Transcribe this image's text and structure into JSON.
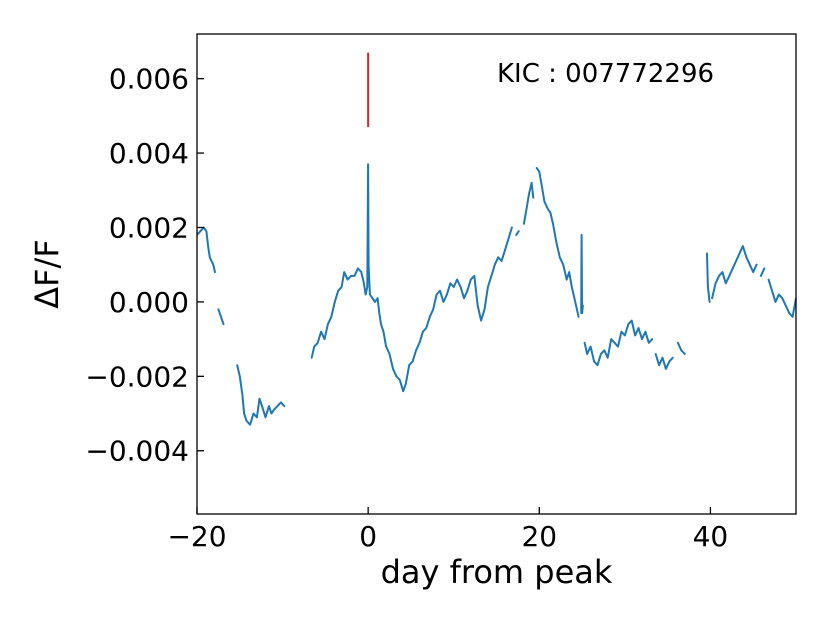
{
  "chart_data": {
    "type": "line",
    "title": "",
    "xlabel": "day from peak",
    "ylabel": "ΔF/F",
    "xlim": [
      -20,
      50
    ],
    "ylim": [
      -0.0057,
      0.0072
    ],
    "x_ticks": [
      -20,
      0,
      20,
      40
    ],
    "x_tick_labels": [
      "−20",
      "0",
      "20",
      "40"
    ],
    "y_ticks": [
      -0.004,
      -0.002,
      0.0,
      0.002,
      0.004,
      0.006
    ],
    "y_tick_labels": [
      "−0.004",
      "−0.002",
      "0.000",
      "0.002",
      "0.004",
      "0.006"
    ],
    "grid": false,
    "annotation": "KIC : 007772296",
    "colors": {
      "series": "#1f77b4",
      "marker": "#d62728",
      "axes": "#000000"
    },
    "peak_marker": {
      "x": 0,
      "y_range": [
        0.0047,
        0.0067
      ]
    },
    "series": [
      {
        "segments": [
          [
            [
              -20,
              0.0018
            ],
            [
              -19.6,
              0.0019
            ],
            [
              -19.2,
              0.002
            ],
            [
              -18.9,
              0.0019
            ],
            [
              -18.7,
              0.0015
            ],
            [
              -18.5,
              0.0012
            ],
            [
              -18.3,
              0.0011
            ],
            [
              -18.1,
              0.001
            ],
            [
              -17.9,
              0.0008
            ]
          ],
          [
            [
              -17.5,
              -0.0002
            ],
            [
              -17.2,
              -0.0004
            ],
            [
              -16.9,
              -0.0006
            ]
          ],
          [
            [
              -15.3,
              -0.0017
            ],
            [
              -15.0,
              -0.002
            ],
            [
              -14.7,
              -0.0025
            ],
            [
              -14.5,
              -0.003
            ],
            [
              -14.2,
              -0.0032
            ],
            [
              -13.8,
              -0.0033
            ],
            [
              -13.4,
              -0.003
            ],
            [
              -13.0,
              -0.0031
            ],
            [
              -12.7,
              -0.0026
            ],
            [
              -12.4,
              -0.0028
            ],
            [
              -12.0,
              -0.0031
            ],
            [
              -11.6,
              -0.0028
            ],
            [
              -11.3,
              -0.003
            ],
            [
              -11.0,
              -0.0029
            ],
            [
              -10.6,
              -0.0028
            ],
            [
              -10.2,
              -0.0027
            ],
            [
              -9.8,
              -0.0028
            ]
          ],
          [
            [
              -6.6,
              -0.0015
            ],
            [
              -6.3,
              -0.0012
            ],
            [
              -5.9,
              -0.0011
            ],
            [
              -5.5,
              -0.0008
            ],
            [
              -5.1,
              -0.001
            ],
            [
              -4.7,
              -0.0006
            ],
            [
              -4.3,
              -0.0004
            ],
            [
              -3.9,
              0.0
            ],
            [
              -3.5,
              0.0003
            ],
            [
              -3.1,
              0.0004
            ],
            [
              -2.8,
              0.0008
            ],
            [
              -2.4,
              0.0006
            ],
            [
              -2.0,
              0.0007
            ],
            [
              -1.6,
              0.0007
            ],
            [
              -1.2,
              0.0009
            ],
            [
              -0.8,
              0.0008
            ],
            [
              -0.5,
              0.0005
            ],
            [
              -0.3,
              0.0002
            ],
            [
              -0.1,
              0.0004
            ],
            [
              0.0,
              0.0037
            ],
            [
              0.05,
              0.001
            ],
            [
              0.2,
              0.0002
            ],
            [
              0.5,
              0.0001
            ],
            [
              0.8,
              0.0
            ],
            [
              1.1,
              0.0001
            ],
            [
              1.3,
              -0.0003
            ],
            [
              1.5,
              -0.0006
            ],
            [
              1.8,
              -0.0008
            ],
            [
              2.1,
              -0.0012
            ],
            [
              2.5,
              -0.0014
            ],
            [
              2.9,
              -0.0018
            ],
            [
              3.3,
              -0.002
            ],
            [
              3.7,
              -0.0021
            ],
            [
              4.1,
              -0.0024
            ],
            [
              4.4,
              -0.0022
            ],
            [
              4.8,
              -0.0017
            ],
            [
              5.2,
              -0.0016
            ],
            [
              5.6,
              -0.0013
            ],
            [
              6.0,
              -0.0011
            ],
            [
              6.4,
              -0.0008
            ],
            [
              6.8,
              -0.0007
            ],
            [
              7.2,
              -0.0004
            ],
            [
              7.6,
              -0.0002
            ],
            [
              8.0,
              0.0002
            ],
            [
              8.4,
              0.0003
            ],
            [
              8.8,
              0.0
            ],
            [
              9.2,
              0.0002
            ],
            [
              9.6,
              0.0005
            ],
            [
              10.0,
              0.0004
            ],
            [
              10.4,
              0.0006
            ],
            [
              10.8,
              0.0004
            ],
            [
              11.2,
              0.0001
            ],
            [
              11.6,
              0.0003
            ],
            [
              12.0,
              0.0006
            ],
            [
              12.4,
              0.0007
            ],
            [
              12.8,
              -0.0001
            ],
            [
              13.2,
              -0.0005
            ],
            [
              13.6,
              -0.0002
            ],
            [
              14.0,
              0.0004
            ],
            [
              14.4,
              0.0007
            ],
            [
              14.8,
              0.001
            ],
            [
              15.2,
              0.0012
            ],
            [
              15.6,
              0.0011
            ],
            [
              16.0,
              0.0014
            ],
            [
              16.4,
              0.0017
            ],
            [
              16.8,
              0.002
            ]
          ],
          [
            [
              17.3,
              0.0018
            ],
            [
              17.6,
              0.0019
            ]
          ],
          [
            [
              18.2,
              0.0021
            ],
            [
              18.5,
              0.0025
            ],
            [
              18.8,
              0.0029
            ],
            [
              19.1,
              0.0032
            ],
            [
              19.3,
              0.0028
            ]
          ],
          [
            [
              19.7,
              0.0036
            ],
            [
              20.0,
              0.0035
            ],
            [
              20.3,
              0.0031
            ],
            [
              20.6,
              0.0027
            ],
            [
              21.0,
              0.0025
            ],
            [
              21.3,
              0.0024
            ],
            [
              21.6,
              0.0021
            ],
            [
              22.0,
              0.0016
            ],
            [
              22.4,
              0.0012
            ],
            [
              22.8,
              0.001
            ],
            [
              23.2,
              0.0006
            ],
            [
              23.5,
              0.0008
            ],
            [
              23.8,
              0.0004
            ],
            [
              24.1,
              0.0001
            ],
            [
              24.4,
              -0.0002
            ],
            [
              24.6,
              -0.0004
            ]
          ],
          [
            [
              24.9,
              -0.0003
            ],
            [
              24.95,
              0.0018
            ],
            [
              25.0,
              -0.0003
            ],
            [
              25.1,
              -0.0001
            ]
          ],
          [
            [
              25.3,
              -0.0011
            ],
            [
              25.6,
              -0.0014
            ],
            [
              26.0,
              -0.0012
            ],
            [
              26.4,
              -0.0016
            ],
            [
              26.8,
              -0.0017
            ],
            [
              27.2,
              -0.0014
            ],
            [
              27.6,
              -0.0013
            ],
            [
              28.0,
              -0.0015
            ],
            [
              28.4,
              -0.001
            ],
            [
              28.8,
              -0.0011
            ],
            [
              29.2,
              -0.0012
            ],
            [
              29.6,
              -0.0008
            ],
            [
              30.0,
              -0.0009
            ],
            [
              30.4,
              -0.0006
            ],
            [
              30.8,
              -0.0005
            ],
            [
              31.2,
              -0.0009
            ],
            [
              31.6,
              -0.0007
            ],
            [
              32.0,
              -0.001
            ],
            [
              32.4,
              -0.0008
            ],
            [
              32.8,
              -0.0011
            ],
            [
              33.2,
              -0.001
            ]
          ],
          [
            [
              33.6,
              -0.0014
            ],
            [
              34.0,
              -0.0017
            ],
            [
              34.4,
              -0.0015
            ],
            [
              34.8,
              -0.0018
            ],
            [
              35.2,
              -0.0016
            ],
            [
              35.6,
              -0.0015
            ]
          ],
          [
            [
              36.2,
              -0.0011
            ],
            [
              36.6,
              -0.0013
            ],
            [
              37.0,
              -0.0014
            ]
          ],
          [
            [
              39.6,
              0.0013
            ],
            [
              39.7,
              0.0004
            ],
            [
              39.9,
              0.0
            ]
          ],
          [
            [
              40.2,
              0.0001
            ],
            [
              40.6,
              0.0005
            ],
            [
              41.0,
              0.0007
            ],
            [
              41.4,
              0.0008
            ],
            [
              41.8,
              0.0005
            ],
            [
              42.2,
              0.0007
            ],
            [
              42.6,
              0.0009
            ],
            [
              43.0,
              0.0011
            ],
            [
              43.4,
              0.0013
            ],
            [
              43.8,
              0.0015
            ],
            [
              44.2,
              0.0012
            ],
            [
              44.6,
              0.001
            ],
            [
              45.0,
              0.0008
            ],
            [
              45.4,
              0.001
            ]
          ],
          [
            [
              45.9,
              0.0007
            ],
            [
              46.3,
              0.0009
            ]
          ],
          [
            [
              46.8,
              0.0006
            ],
            [
              47.2,
              0.0003
            ],
            [
              47.6,
              0.0
            ],
            [
              48.0,
              0.0002
            ],
            [
              48.4,
              0.0001
            ],
            [
              48.8,
              -0.0001
            ],
            [
              49.2,
              -0.0003
            ],
            [
              49.6,
              -0.0004
            ],
            [
              50.0,
              0.0001
            ]
          ]
        ]
      }
    ]
  }
}
